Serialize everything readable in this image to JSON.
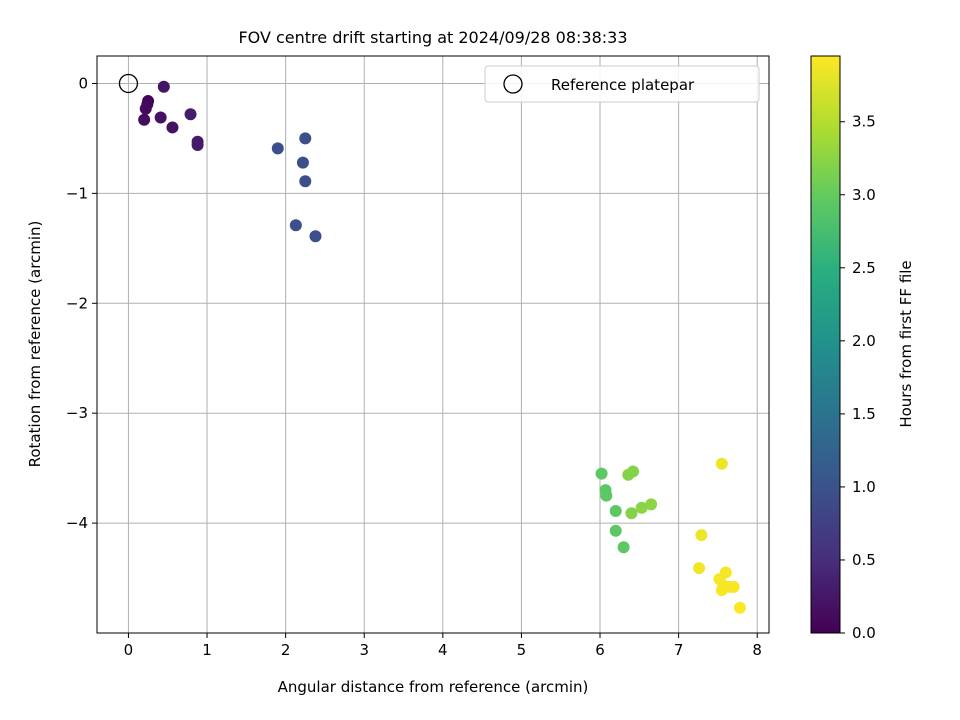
{
  "chart_data": {
    "type": "scatter",
    "title": "FOV centre drift starting at 2024/09/28 08:38:33",
    "xlabel": "Angular distance from reference (arcmin)",
    "ylabel": "Rotation from reference (arcmin)",
    "xlim": [
      -0.4,
      8.15
    ],
    "ylim": [
      -5.0,
      0.25
    ],
    "xticks": [
      0,
      1,
      2,
      3,
      4,
      5,
      6,
      7,
      8
    ],
    "xtick_labels": [
      "0",
      "1",
      "2",
      "3",
      "4",
      "5",
      "6",
      "7",
      "8"
    ],
    "yticks": [
      0,
      -1,
      -2,
      -3,
      -4
    ],
    "ytick_labels": [
      "0",
      "−1",
      "−2",
      "−3",
      "−4"
    ],
    "grid": true,
    "legend": {
      "position": "top-right",
      "label": "Reference platepar",
      "marker": "open-circle"
    },
    "reference_point": {
      "x": 0,
      "y": 0
    },
    "colorbar": {
      "label": "Hours from first FF file",
      "colormap": "viridis",
      "range": [
        0.0,
        3.95
      ],
      "ticks": [
        0.0,
        0.5,
        1.0,
        1.5,
        2.0,
        2.5,
        3.0,
        3.5
      ],
      "tick_labels": [
        "0.0",
        "0.5",
        "1.0",
        "1.5",
        "2.0",
        "2.5",
        "3.0",
        "3.5"
      ]
    },
    "points": [
      {
        "x": 0.25,
        "y": -0.16,
        "c": 0.05
      },
      {
        "x": 0.24,
        "y": -0.19,
        "c": 0.08
      },
      {
        "x": 0.22,
        "y": -0.23,
        "c": 0.1
      },
      {
        "x": 0.45,
        "y": -0.03,
        "c": 0.22
      },
      {
        "x": 0.2,
        "y": -0.33,
        "c": 0.12
      },
      {
        "x": 0.41,
        "y": -0.31,
        "c": 0.18
      },
      {
        "x": 0.56,
        "y": -0.4,
        "c": 0.2
      },
      {
        "x": 0.79,
        "y": -0.28,
        "c": 0.3
      },
      {
        "x": 0.88,
        "y": -0.53,
        "c": 0.28
      },
      {
        "x": 0.88,
        "y": -0.56,
        "c": 0.28
      },
      {
        "x": 1.9,
        "y": -0.59,
        "c": 0.95
      },
      {
        "x": 2.25,
        "y": -0.5,
        "c": 0.95
      },
      {
        "x": 2.22,
        "y": -0.72,
        "c": 0.95
      },
      {
        "x": 2.25,
        "y": -0.89,
        "c": 0.95
      },
      {
        "x": 2.13,
        "y": -1.29,
        "c": 0.95
      },
      {
        "x": 2.38,
        "y": -1.39,
        "c": 0.95
      },
      {
        "x": 6.02,
        "y": -3.55,
        "c": 2.95
      },
      {
        "x": 6.07,
        "y": -3.7,
        "c": 2.95
      },
      {
        "x": 6.08,
        "y": -3.75,
        "c": 2.95
      },
      {
        "x": 6.2,
        "y": -3.89,
        "c": 2.95
      },
      {
        "x": 6.2,
        "y": -4.07,
        "c": 2.95
      },
      {
        "x": 6.3,
        "y": -4.22,
        "c": 2.95
      },
      {
        "x": 6.36,
        "y": -3.56,
        "c": 3.2
      },
      {
        "x": 6.42,
        "y": -3.53,
        "c": 3.2
      },
      {
        "x": 6.4,
        "y": -3.91,
        "c": 3.2
      },
      {
        "x": 6.53,
        "y": -3.86,
        "c": 3.25
      },
      {
        "x": 6.65,
        "y": -3.83,
        "c": 3.25
      },
      {
        "x": 7.55,
        "y": -3.46,
        "c": 3.85
      },
      {
        "x": 7.29,
        "y": -4.11,
        "c": 3.85
      },
      {
        "x": 7.26,
        "y": -4.41,
        "c": 3.88
      },
      {
        "x": 7.6,
        "y": -4.45,
        "c": 3.9
      },
      {
        "x": 7.52,
        "y": -4.51,
        "c": 3.9
      },
      {
        "x": 7.57,
        "y": -4.57,
        "c": 3.9
      },
      {
        "x": 7.55,
        "y": -4.61,
        "c": 3.9
      },
      {
        "x": 7.64,
        "y": -4.58,
        "c": 3.92
      },
      {
        "x": 7.7,
        "y": -4.58,
        "c": 3.92
      },
      {
        "x": 7.78,
        "y": -4.77,
        "c": 3.94
      }
    ]
  }
}
